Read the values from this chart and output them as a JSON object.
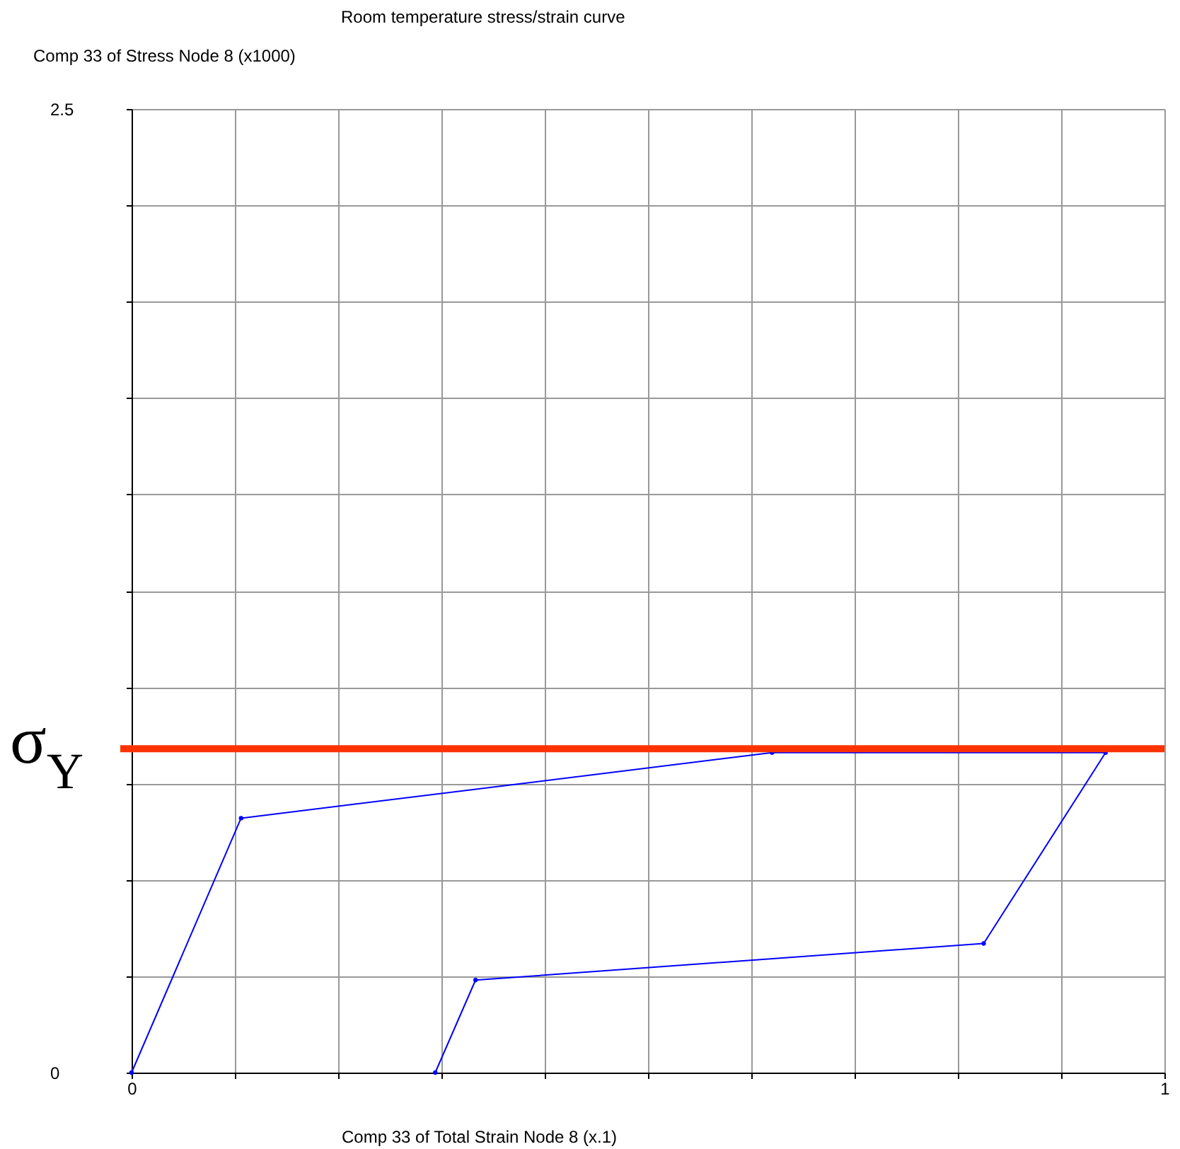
{
  "chart_data": {
    "type": "line",
    "title": "Room temperature stress/strain curve",
    "xlabel": "Comp 33 of Total Strain Node 8 (x.1)",
    "ylabel": "Comp 33 of Stress Node 8 (x1000)",
    "x": [
      0,
      0.106,
      0.62,
      0.943,
      0.825,
      0.333,
      0.294
    ],
    "series": [
      {
        "color": "#0000ff",
        "values": [
          0,
          0.66,
          0.83,
          0.83,
          0.335,
          0.24,
          0
        ]
      }
    ],
    "xlim": [
      0,
      1
    ],
    "ylim": [
      0,
      2.5
    ],
    "xticks": [
      0,
      {
        "value": 0.1,
        "label": null
      },
      {
        "value": 0.2,
        "label": null
      },
      {
        "value": 0.3,
        "label": null
      },
      {
        "value": 0.4,
        "label": null
      },
      {
        "value": 0.5,
        "label": null
      },
      {
        "value": 0.6,
        "label": null
      },
      {
        "value": 0.7,
        "label": null
      },
      {
        "value": 0.8,
        "label": null
      },
      {
        "value": 0.9,
        "label": null
      },
      1
    ],
    "yticks": [
      0,
      {
        "value": 0.25,
        "label": null
      },
      {
        "value": 0.5,
        "label": null
      },
      {
        "value": 0.75,
        "label": null
      },
      {
        "value": 1,
        "label": null
      },
      {
        "value": 1.25,
        "label": null
      },
      {
        "value": 1.5,
        "label": null
      },
      {
        "value": 1.75,
        "label": null
      },
      {
        "value": 2,
        "label": null
      },
      {
        "value": 2.25,
        "label": null
      },
      2.5
    ],
    "ref_lines": [
      {
        "axis": "y",
        "value": 0.84,
        "label": "σ$_{Y}$",
        "color": "#ff3300"
      }
    ],
    "grid": true,
    "marker": "circle",
    "line_style": "solid"
  }
}
